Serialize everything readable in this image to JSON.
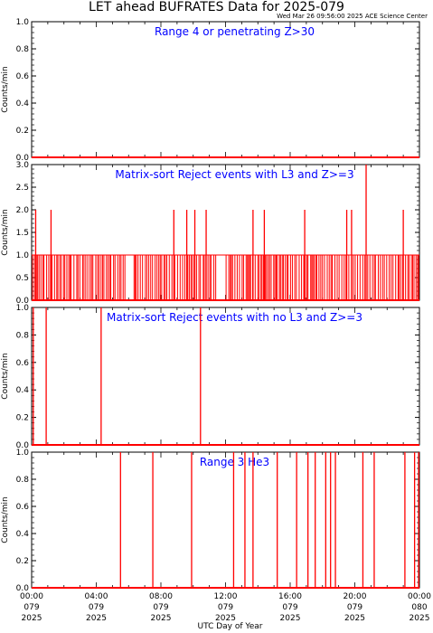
{
  "header": {
    "title": "LET ahead BUFRATES Data for 2025-079",
    "timestamp": "Wed Mar 26 09:56:00 2025 ACE Science Center"
  },
  "colors": {
    "data": "#ff0000",
    "label": "#0000ff",
    "axis": "#000000"
  },
  "chart_data": [
    {
      "type": "line",
      "title": "Range 4 or   penetrating Z>30",
      "ylabel": "Counts/min",
      "ylim": [
        0,
        1
      ],
      "yticks": [
        "0.0",
        "0.2",
        "0.4",
        "0.6",
        "0.8",
        "1.0"
      ],
      "ytick_values": [
        0,
        0.2,
        0.4,
        0.6,
        0.8,
        1.0
      ],
      "baseline": 0,
      "spikes": []
    },
    {
      "type": "line",
      "title": "Matrix-sort Reject events with L3 and Z>=3",
      "ylabel": "Counts/min",
      "ylim": [
        0,
        3
      ],
      "yticks": [
        "0.0",
        "0.5",
        "1.0",
        "1.5",
        "2.0",
        "2.5",
        "3.0"
      ],
      "ytick_values": [
        0,
        0.5,
        1.0,
        1.5,
        2.0,
        2.5,
        3.0
      ],
      "baseline": 0,
      "dense_ones": true,
      "spikes": [
        {
          "t": 0.25,
          "v": 2
        },
        {
          "t": 1.2,
          "v": 2
        },
        {
          "t": 8.8,
          "v": 2
        },
        {
          "t": 9.6,
          "v": 2
        },
        {
          "t": 10.1,
          "v": 2
        },
        {
          "t": 10.8,
          "v": 2
        },
        {
          "t": 13.7,
          "v": 2
        },
        {
          "t": 14.4,
          "v": 2
        },
        {
          "t": 16.9,
          "v": 2
        },
        {
          "t": 19.5,
          "v": 2
        },
        {
          "t": 19.8,
          "v": 2
        },
        {
          "t": 20.7,
          "v": 3
        },
        {
          "t": 23.0,
          "v": 2
        }
      ]
    },
    {
      "type": "line",
      "title": "Matrix-sort Reject events with no L3 and Z>=3",
      "ylabel": "Counts/min",
      "ylim": [
        0,
        1
      ],
      "yticks": [
        "0.0",
        "0.2",
        "0.4",
        "0.6",
        "0.8",
        "1.0"
      ],
      "ytick_values": [
        0,
        0.2,
        0.4,
        0.6,
        0.8,
        1.0
      ],
      "baseline": 0,
      "spikes": [
        {
          "t": 0.1,
          "v": 1
        },
        {
          "t": 0.9,
          "v": 1
        },
        {
          "t": 4.3,
          "v": 1
        },
        {
          "t": 10.45,
          "v": 1
        }
      ]
    },
    {
      "type": "line",
      "title": "Range 3 He3",
      "ylabel": "Counts/min",
      "ylim": [
        0,
        1
      ],
      "yticks": [
        "0.0",
        "0.2",
        "0.4",
        "0.6",
        "0.8",
        "1.0"
      ],
      "ytick_values": [
        0,
        0.2,
        0.4,
        0.6,
        0.8,
        1.0
      ],
      "baseline": 0,
      "spikes": [
        {
          "t": 5.5,
          "v": 1
        },
        {
          "t": 7.5,
          "v": 1
        },
        {
          "t": 9.9,
          "v": 1
        },
        {
          "t": 12.5,
          "v": 1
        },
        {
          "t": 13.2,
          "v": 1
        },
        {
          "t": 13.7,
          "v": 1
        },
        {
          "t": 15.2,
          "v": 1
        },
        {
          "t": 16.4,
          "v": 1
        },
        {
          "t": 17.1,
          "v": 1
        },
        {
          "t": 17.55,
          "v": 1
        },
        {
          "t": 18.2,
          "v": 1
        },
        {
          "t": 18.5,
          "v": 1
        },
        {
          "t": 18.8,
          "v": 1
        },
        {
          "t": 20.5,
          "v": 1
        },
        {
          "t": 21.2,
          "v": 1
        },
        {
          "t": 23.1,
          "v": 1
        },
        {
          "t": 23.7,
          "v": 1
        },
        {
          "t": 23.95,
          "v": 1
        }
      ]
    }
  ],
  "xaxis": {
    "label": "UTC Day of Year",
    "xlim": [
      0,
      24
    ],
    "ticks": [
      {
        "t": 0,
        "time": "00:00",
        "doy": "079",
        "year": "2025"
      },
      {
        "t": 4,
        "time": "04:00",
        "doy": "079",
        "year": "2025"
      },
      {
        "t": 8,
        "time": "08:00",
        "doy": "079",
        "year": "2025"
      },
      {
        "t": 12,
        "time": "12:00",
        "doy": "079",
        "year": "2025"
      },
      {
        "t": 16,
        "time": "16:00",
        "doy": "079",
        "year": "2025"
      },
      {
        "t": 20,
        "time": "20:00",
        "doy": "079",
        "year": "2025"
      },
      {
        "t": 24,
        "time": "00:00",
        "doy": "080",
        "year": "2025"
      }
    ]
  }
}
